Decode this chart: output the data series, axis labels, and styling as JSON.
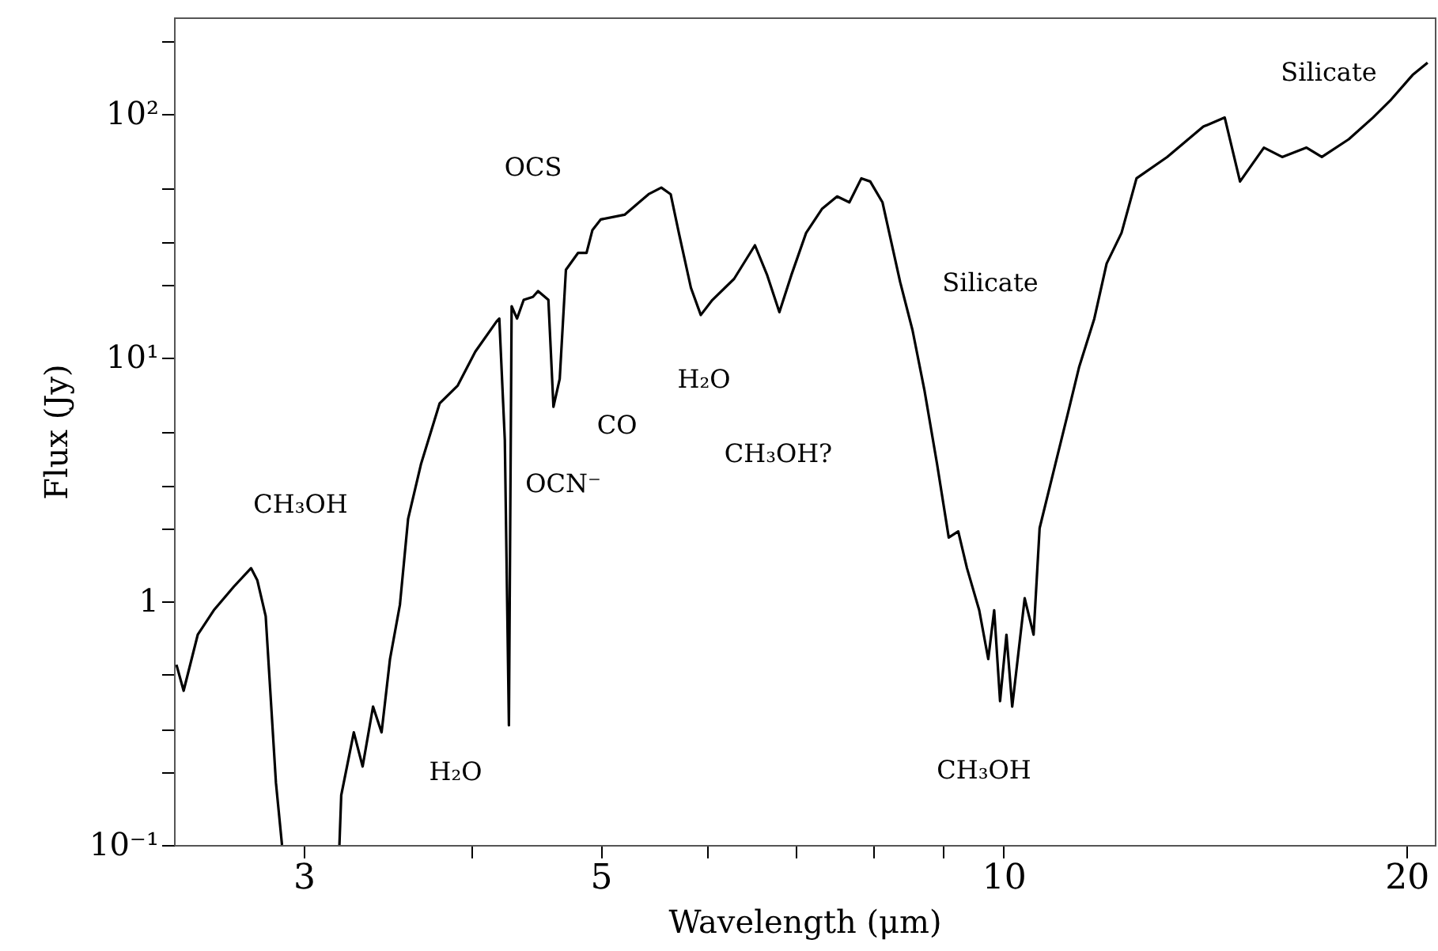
{
  "chart_data": {
    "type": "line",
    "xlabel": "Wavelength (μm)",
    "ylabel": "Flux (Jy)",
    "log": "xy",
    "grid": false,
    "marker": "none",
    "line_style": "solid",
    "xlim": [
      2.4,
      21
    ],
    "ylim": [
      0.1,
      250
    ],
    "xticks": [
      3,
      {
        "value": 4,
        "label": null
      },
      5,
      {
        "value": 6,
        "label": null
      },
      {
        "value": 7,
        "label": null
      },
      {
        "value": 8,
        "label": null
      },
      {
        "value": 9,
        "label": null
      },
      10,
      20
    ],
    "yticks": [
      {
        "value": 0.1,
        "label": "10⁻¹"
      },
      {
        "value": 0.2,
        "label": null
      },
      {
        "value": 0.3,
        "label": null
      },
      {
        "value": 0.5,
        "label": null
      },
      1,
      {
        "value": 2,
        "label": null
      },
      {
        "value": 3,
        "label": null
      },
      {
        "value": 5,
        "label": null
      },
      {
        "value": 10,
        "label": "10¹"
      },
      {
        "value": 20,
        "label": null
      },
      {
        "value": 30,
        "label": null
      },
      {
        "value": 50,
        "label": null
      },
      {
        "value": 100,
        "label": "10²"
      },
      {
        "value": 200,
        "label": null
      }
    ],
    "series": [
      {
        "color": "#000000",
        "x": [
          2.41,
          2.44,
          2.5,
          2.57,
          2.66,
          2.74,
          2.77,
          2.81,
          2.86,
          2.89,
          3.04,
          3.19,
          3.2,
          3.27,
          3.32,
          3.38,
          3.43,
          3.48,
          3.54,
          3.59,
          3.67,
          3.79,
          3.91,
          4.03,
          4.18,
          4.2,
          4.24,
          4.27,
          4.29,
          4.33,
          4.38,
          4.45,
          4.49,
          4.57,
          4.61,
          4.66,
          4.71,
          4.81,
          4.88,
          4.93,
          5.0,
          5.21,
          5.43,
          5.55,
          5.64,
          5.72,
          5.84,
          5.94,
          6.06,
          6.29,
          6.52,
          6.66,
          6.8,
          6.94,
          7.12,
          7.32,
          7.51,
          7.67,
          7.83,
          7.95,
          8.12,
          8.37,
          8.55,
          8.73,
          8.92,
          9.1,
          9.25,
          9.39,
          9.59,
          9.74,
          9.84,
          9.94,
          10.05,
          10.15,
          10.37,
          10.53,
          10.64,
          10.93,
          11.16,
          11.39,
          11.69,
          11.94,
          12.25,
          12.57,
          13.25,
          14.1,
          14.63,
          15.02,
          15.65,
          16.15,
          16.84,
          17.29,
          18.11,
          18.88,
          19.48,
          20.21,
          20.74
        ],
        "values": [
          0.55,
          0.43,
          0.73,
          0.92,
          1.15,
          1.37,
          1.22,
          0.87,
          0.18,
          0.1,
          null,
          0.1,
          0.16,
          0.29,
          0.21,
          0.37,
          0.29,
          0.58,
          0.97,
          2.18,
          3.65,
          6.5,
          7.7,
          10.6,
          14.1,
          14.5,
          4.6,
          0.31,
          16.3,
          14.5,
          17.3,
          17.8,
          18.8,
          17.3,
          6.3,
          8.2,
          23,
          27,
          27,
          33.5,
          37,
          38.7,
          47,
          50,
          47,
          32.6,
          19.4,
          15,
          17.3,
          21.1,
          29,
          21.8,
          15.4,
          21.8,
          32.6,
          41,
          46,
          43.5,
          54.6,
          53,
          43.5,
          20.5,
          13,
          7.3,
          3.65,
          1.83,
          1.94,
          1.37,
          0.92,
          0.58,
          0.92,
          0.39,
          0.73,
          0.37,
          1.03,
          0.73,
          2.0,
          3.65,
          5.8,
          9.2,
          14.5,
          24.4,
          32.6,
          54.6,
          66.8,
          89,
          97,
          53,
          73,
          66.8,
          73,
          66.8,
          79,
          97,
          115,
          145,
          163
        ]
      }
    ],
    "annotations": [
      "OCS",
      "CO",
      "OCN⁻",
      "CH₃OH",
      "H₂O",
      "H₂O",
      "CH₃OH?",
      "Silicate",
      "CH₃OH",
      "Silicate"
    ]
  }
}
